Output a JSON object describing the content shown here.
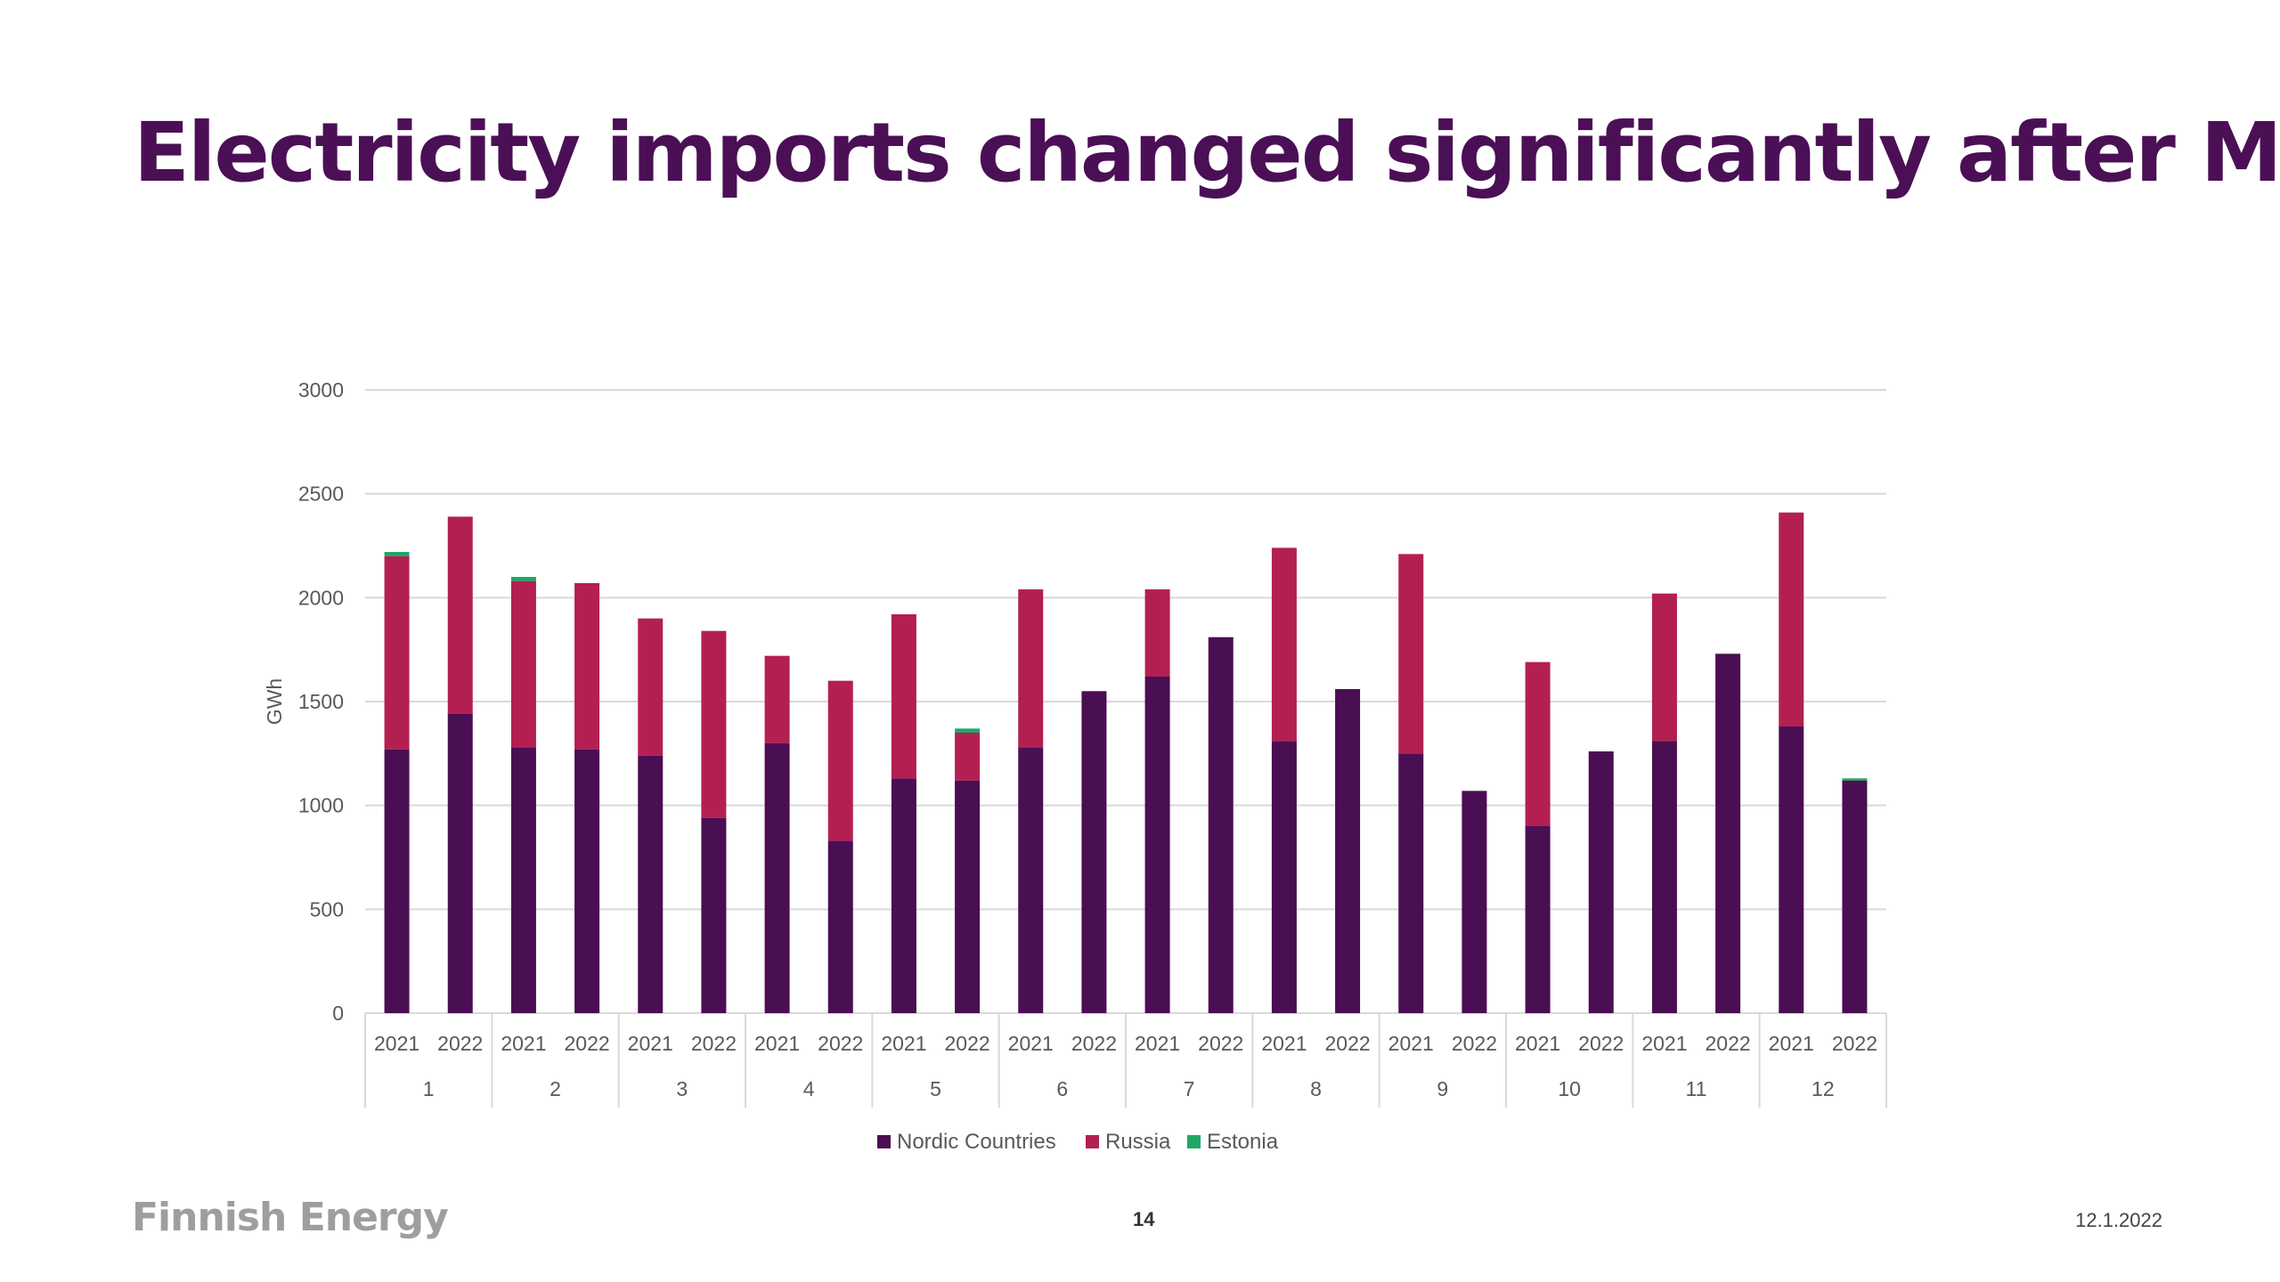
{
  "slide": {
    "title": "Electricity imports changed significantly after May",
    "logo_text": "Finnish Energy",
    "page_number": "14",
    "date": "12.1.2022"
  },
  "chart_data": {
    "type": "bar",
    "stacked": true,
    "ylabel": "GWh",
    "ylim": [
      0,
      3000
    ],
    "yticks": [
      0,
      500,
      1000,
      1500,
      2000,
      2500,
      3000
    ],
    "grid": true,
    "legend_position": "bottom",
    "month_groups": [
      "1",
      "2",
      "3",
      "4",
      "5",
      "6",
      "7",
      "8",
      "9",
      "10",
      "11",
      "12"
    ],
    "years": [
      "2021",
      "2022"
    ],
    "categories": [
      "1 2021",
      "1 2022",
      "2 2021",
      "2 2022",
      "3 2021",
      "3 2022",
      "4 2021",
      "4 2022",
      "5 2021",
      "5 2022",
      "6 2021",
      "6 2022",
      "7 2021",
      "7 2022",
      "8 2021",
      "8 2022",
      "9 2021",
      "9 2022",
      "10 2021",
      "10 2022",
      "11 2021",
      "11 2022",
      "12 2021",
      "12 2022"
    ],
    "series": [
      {
        "name": "Nordic Countries",
        "color": "#4a0e52",
        "values": [
          1270,
          1440,
          1280,
          1270,
          1240,
          940,
          1300,
          830,
          1130,
          1120,
          1280,
          1550,
          1620,
          1810,
          1310,
          1560,
          1250,
          1070,
          900,
          1260,
          1310,
          1730,
          1380,
          1120
        ]
      },
      {
        "name": "Russia",
        "color": "#b41f52",
        "values": [
          930,
          950,
          800,
          800,
          660,
          900,
          420,
          770,
          790,
          230,
          760,
          0,
          420,
          0,
          930,
          0,
          960,
          0,
          790,
          0,
          710,
          0,
          1030,
          0
        ]
      },
      {
        "name": "Estonia",
        "color": "#1fa865",
        "values": [
          20,
          0,
          20,
          0,
          0,
          0,
          0,
          0,
          0,
          20,
          0,
          0,
          0,
          0,
          0,
          0,
          0,
          0,
          0,
          0,
          0,
          0,
          0,
          10
        ]
      }
    ]
  }
}
